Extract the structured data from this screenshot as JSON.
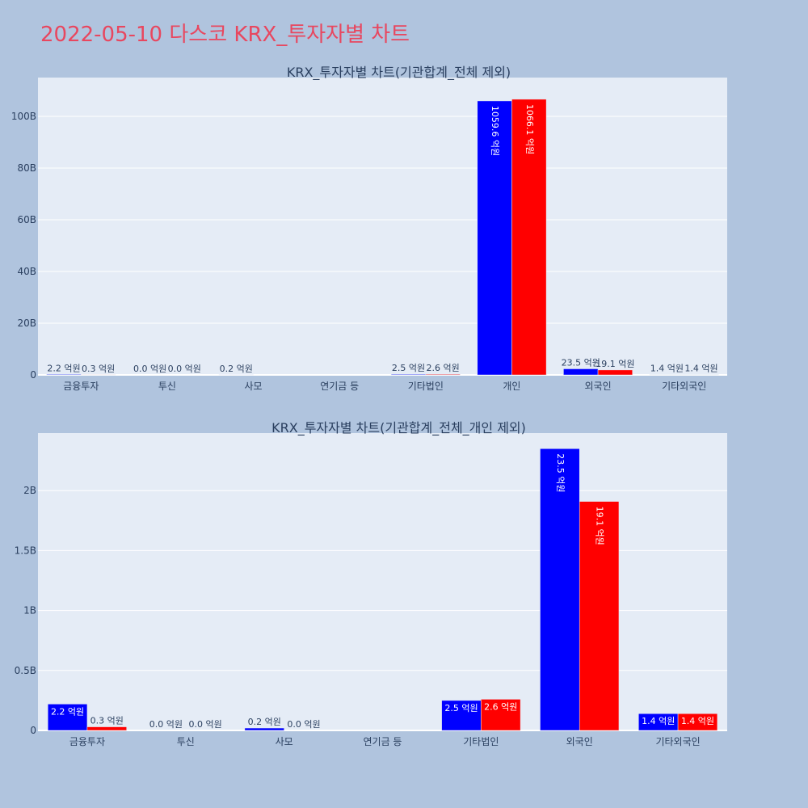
{
  "page": {
    "title": "2022-05-10 다스코 KRX_투자자별 차트"
  },
  "colors": {
    "page_bg": "#b0c4de",
    "plot_bg": "#e5ecf6",
    "grid": "#ffffff",
    "text": "#2a3f5f",
    "title": "#e8475f",
    "series_a": "#0000ff",
    "series_b": "#ff0000"
  },
  "chart_data": [
    {
      "type": "bar",
      "title": "KRX_투자자별 차트(기관합계_전체 제외)",
      "categories": [
        "금융투자",
        "투신",
        "사모",
        "연기금 등",
        "기타법인",
        "개인",
        "외국인",
        "기타외국인"
      ],
      "series": [
        {
          "color": "#0000ff",
          "values": [
            0.22,
            0.0,
            0.02,
            null,
            0.25,
            105.96,
            2.35,
            0.14
          ],
          "labels": [
            "2.2 억원",
            "0.0 억원",
            "0.2 억원",
            "",
            "2.5 억원",
            "1059.6 억원",
            "23.5 억원",
            "1.4 억원"
          ]
        },
        {
          "color": "#ff0000",
          "values": [
            0.03,
            0.0,
            null,
            null,
            0.26,
            106.61,
            1.91,
            0.14
          ],
          "labels": [
            "0.3 억원",
            "0.0 억원",
            "",
            "",
            "2.6 억원",
            "1066.1 억원",
            "19.1 억원",
            "1.4 억원"
          ]
        }
      ],
      "ylim": [
        0,
        115
      ],
      "yticks": [
        0,
        20,
        40,
        60,
        80,
        100
      ],
      "ytick_labels": [
        "0",
        "20B",
        "40B",
        "60B",
        "80B",
        "100B"
      ],
      "grid": true,
      "legend": "none"
    },
    {
      "type": "bar",
      "title": "KRX_투자자별 차트(기관합계_전체_개인 제외)",
      "categories": [
        "금융투자",
        "투신",
        "사모",
        "연기금 등",
        "기타법인",
        "외국인",
        "기타외국인"
      ],
      "series": [
        {
          "color": "#0000ff",
          "values": [
            0.22,
            0.0,
            0.02,
            null,
            0.25,
            2.35,
            0.14
          ],
          "labels": [
            "2.2 억원",
            "0.0 억원",
            "0.2 억원",
            "",
            "2.5 억원",
            "23.5 억원",
            "1.4 억원"
          ]
        },
        {
          "color": "#ff0000",
          "values": [
            0.03,
            0.0,
            0.0,
            null,
            0.26,
            1.91,
            0.14
          ],
          "labels": [
            "0.3 억원",
            "0.0 억원",
            "0.0 억원",
            "",
            "2.6 억원",
            "19.1 억원",
            "1.4 억원"
          ]
        }
      ],
      "ylim": [
        0,
        2.48
      ],
      "yticks": [
        0,
        0.5,
        1,
        1.5,
        2
      ],
      "ytick_labels": [
        "0",
        "0.5B",
        "1B",
        "1.5B",
        "2B"
      ],
      "grid": true,
      "legend": "none"
    }
  ]
}
